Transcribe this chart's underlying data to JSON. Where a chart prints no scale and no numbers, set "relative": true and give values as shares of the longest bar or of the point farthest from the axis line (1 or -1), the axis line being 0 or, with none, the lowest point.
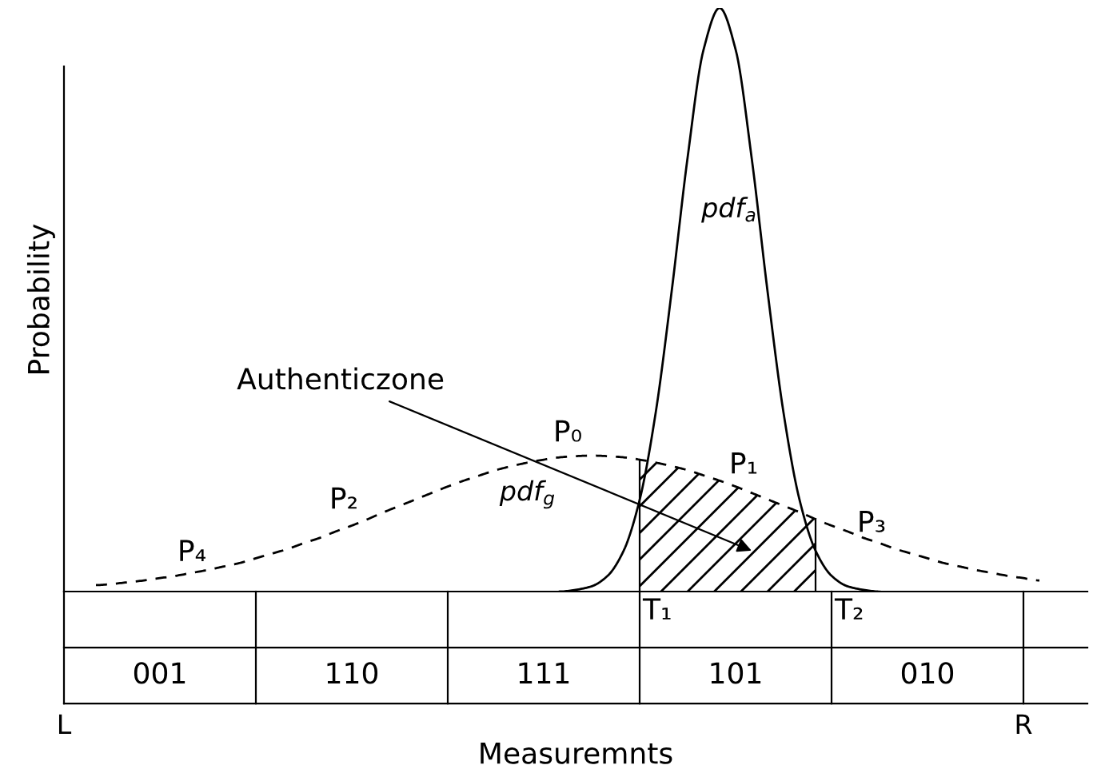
{
  "chart_data": {
    "type": "line",
    "relative": true,
    "xlabel": "Measuremnts",
    "ylabel": "Probability",
    "categories": [
      "L",
      null,
      null,
      null,
      null,
      null,
      null,
      null,
      null,
      null,
      null,
      null,
      null,
      null,
      null,
      null,
      null,
      null,
      null,
      null,
      null,
      null,
      null,
      null,
      null,
      null,
      null,
      null,
      null,
      null,
      null,
      null,
      null,
      null,
      null,
      null,
      null,
      null,
      null,
      null,
      null,
      null,
      null,
      null,
      null,
      null,
      null,
      null,
      null,
      null,
      null,
      null,
      null,
      null,
      null,
      null,
      null,
      null,
      null,
      null,
      "R",
      null,
      null,
      null,
      null
    ],
    "grid": false,
    "marker": "none",
    "series": [
      {
        "line_style": "dashed",
        "color": "#000000",
        "values": [
          null,
          null,
          0.011,
          0.013,
          0.016,
          0.019,
          0.023,
          0.027,
          0.032,
          0.037,
          0.043,
          0.049,
          0.057,
          0.065,
          0.073,
          0.083,
          0.092,
          0.103,
          0.113,
          0.124,
          0.136,
          0.147,
          0.158,
          0.169,
          0.18,
          0.19,
          0.199,
          0.208,
          0.215,
          0.221,
          0.226,
          0.23,
          0.232,
          0.233,
          0.232,
          0.23,
          0.226,
          0.221,
          0.215,
          0.208,
          0.199,
          0.19,
          0.18,
          0.169,
          0.158,
          0.147,
          0.136,
          0.124,
          0.113,
          0.103,
          0.092,
          0.083,
          0.073,
          0.065,
          0.057,
          0.049,
          0.043,
          0.037,
          0.032,
          0.027,
          0.023,
          0.019,
          null,
          null,
          null
        ]
      },
      {
        "line_style": "solid",
        "color": "#000000",
        "values": [
          null,
          null,
          null,
          null,
          null,
          null,
          null,
          null,
          null,
          null,
          null,
          null,
          null,
          null,
          null,
          null,
          null,
          null,
          null,
          null,
          null,
          null,
          null,
          null,
          null,
          null,
          null,
          null,
          null,
          null,
          null,
          0,
          0.003,
          0.009,
          0.027,
          0.07,
          0.157,
          0.306,
          0.514,
          0.744,
          0.929,
          1,
          0.929,
          0.744,
          0.514,
          0.306,
          0.157,
          0.07,
          0.027,
          0.009,
          0.003,
          0,
          null,
          null,
          null,
          null,
          null,
          null,
          null,
          null,
          null,
          null,
          null,
          null,
          null
        ]
      },
      {
        "type": "area",
        "color": "#000000",
        "values": [
          null,
          null,
          null,
          null,
          null,
          null,
          null,
          null,
          null,
          null,
          null,
          null,
          null,
          null,
          null,
          null,
          null,
          null,
          null,
          null,
          null,
          null,
          null,
          null,
          null,
          null,
          null,
          null,
          null,
          null,
          null,
          null,
          null,
          null,
          null,
          null,
          0.226,
          0.221,
          0.215,
          0.208,
          0.199,
          0.19,
          0.18,
          0.169,
          0.158,
          0.147,
          0.136,
          0.124,
          null,
          null,
          null,
          null,
          null,
          null,
          null,
          null,
          null,
          null,
          null,
          null,
          null,
          null,
          null,
          null,
          null
        ]
      }
    ],
    "annotations": [
      "Authenticzone",
      "P₄",
      "P₂",
      "P₀",
      "P₁",
      "P₃",
      "pdf$_{a}$",
      "pdf$_{g}$",
      "T₁",
      "T₂",
      "001",
      "110",
      "111",
      "101",
      "010"
    ]
  }
}
